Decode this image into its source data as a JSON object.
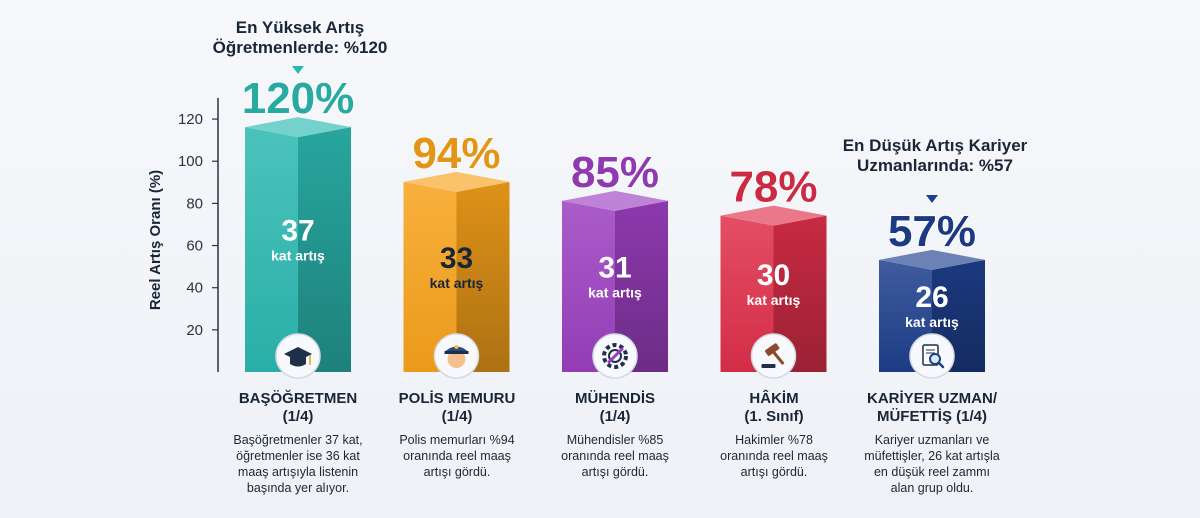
{
  "chart_data": {
    "type": "bar",
    "ylabel": "Reel Artış Oranı (%)",
    "ylim": [
      0,
      130
    ],
    "yticks": [
      20,
      40,
      60,
      80,
      100,
      120
    ],
    "grid": false,
    "categories": [
      "BAŞÖĞRETMEN (1/4)",
      "POLİS MEMURU (1/4)",
      "MÜHENDİS (1/4)",
      "HÂKİM (1. Sınıf)",
      "KARİYER UZMAN/ MÜFETTİŞ (1/4)"
    ],
    "values": [
      120,
      94,
      85,
      78,
      57
    ],
    "value_labels": [
      "120%",
      "94%",
      "85%",
      "78%",
      "57%"
    ],
    "multipliers": [
      "37",
      "33",
      "31",
      "30",
      "26"
    ],
    "multiplier_unit": "kat artış",
    "colors": [
      "#2bb8b0",
      "#f7a21b",
      "#9b3fc0",
      "#de2f4a",
      "#1e3f8c"
    ]
  },
  "bars": [
    {
      "name_lines": [
        "BAŞÖĞRETMEN",
        "(1/4)"
      ],
      "desc_lines": [
        "Başöğretmenler 37 kat,",
        "öğretmenler ise 36 kat",
        "maaş artışıyla listenin",
        "başında yer alıyor."
      ],
      "icon": "graduation-cap-icon"
    },
    {
      "name_lines": [
        "POLİS MEMURU",
        "(1/4)"
      ],
      "desc_lines": [
        "Polis memurları %94",
        "oranında reel maaş",
        "artışı gördü."
      ],
      "icon": "police-officer-icon"
    },
    {
      "name_lines": [
        "MÜHENDİS",
        "(1/4)"
      ],
      "desc_lines": [
        "Mühendisler %85",
        "oranında reel maaş",
        "artışı gördü."
      ],
      "icon": "gear-wrench-icon"
    },
    {
      "name_lines": [
        "HÂKİM",
        "(1. Sınıf)"
      ],
      "desc_lines": [
        "Hakimler %78",
        "oranında reel maaş",
        "artışı gördü."
      ],
      "icon": "gavel-icon"
    },
    {
      "name_lines": [
        "KARİYER UZMAN/",
        "MÜFETTİŞ (1/4)"
      ],
      "desc_lines": [
        "Kariyer uzmanları ve",
        "müfettişler, 26 kat artışla",
        "en düşük reel zammı",
        "alan grup oldu."
      ],
      "icon": "document-search-icon"
    }
  ],
  "callouts": {
    "highest": [
      "En Yüksek Artış",
      "Öğretmenlerde: %120"
    ],
    "lowest": [
      "En Düşük Artış Kariyer",
      "Uzmanlarında: %57"
    ]
  }
}
